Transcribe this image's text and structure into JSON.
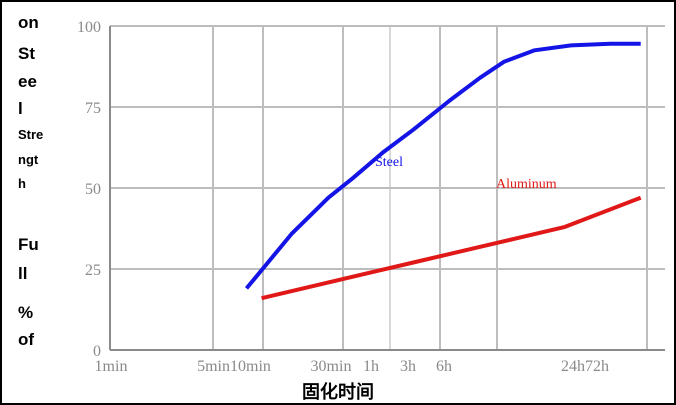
{
  "chart_data": {
    "type": "line",
    "xlabel": "固化时间",
    "ylabel_lines": [
      "on",
      "St",
      "ee",
      "l",
      "Stre",
      "ngt",
      "h",
      "Fu",
      "ll",
      "%",
      "of"
    ],
    "yticks": [
      0,
      25,
      50,
      75,
      100
    ],
    "ylim": [
      0,
      100
    ],
    "xticks": [
      "1min",
      "5min10min",
      "30min",
      "1h",
      "3h",
      "6h",
      "24h72h"
    ],
    "grid": true,
    "series": [
      {
        "name": "Steel",
        "color": "#1414e6",
        "points": [
          [
            0.45,
            19
          ],
          [
            0.6,
            36
          ],
          [
            0.72,
            47
          ],
          [
            0.8,
            53
          ],
          [
            0.9,
            61
          ],
          [
            1.0,
            68
          ],
          [
            1.12,
            77
          ],
          [
            1.22,
            84
          ],
          [
            1.3,
            89
          ],
          [
            1.4,
            92.5
          ],
          [
            1.52,
            94
          ],
          [
            1.65,
            94.5
          ],
          [
            1.75,
            94.5
          ]
        ]
      },
      {
        "name": "Aluminum",
        "color": "#e01818",
        "points": [
          [
            0.5,
            16
          ],
          [
            1.0,
            27
          ],
          [
            1.5,
            38
          ],
          [
            1.75,
            47
          ]
        ]
      }
    ]
  }
}
